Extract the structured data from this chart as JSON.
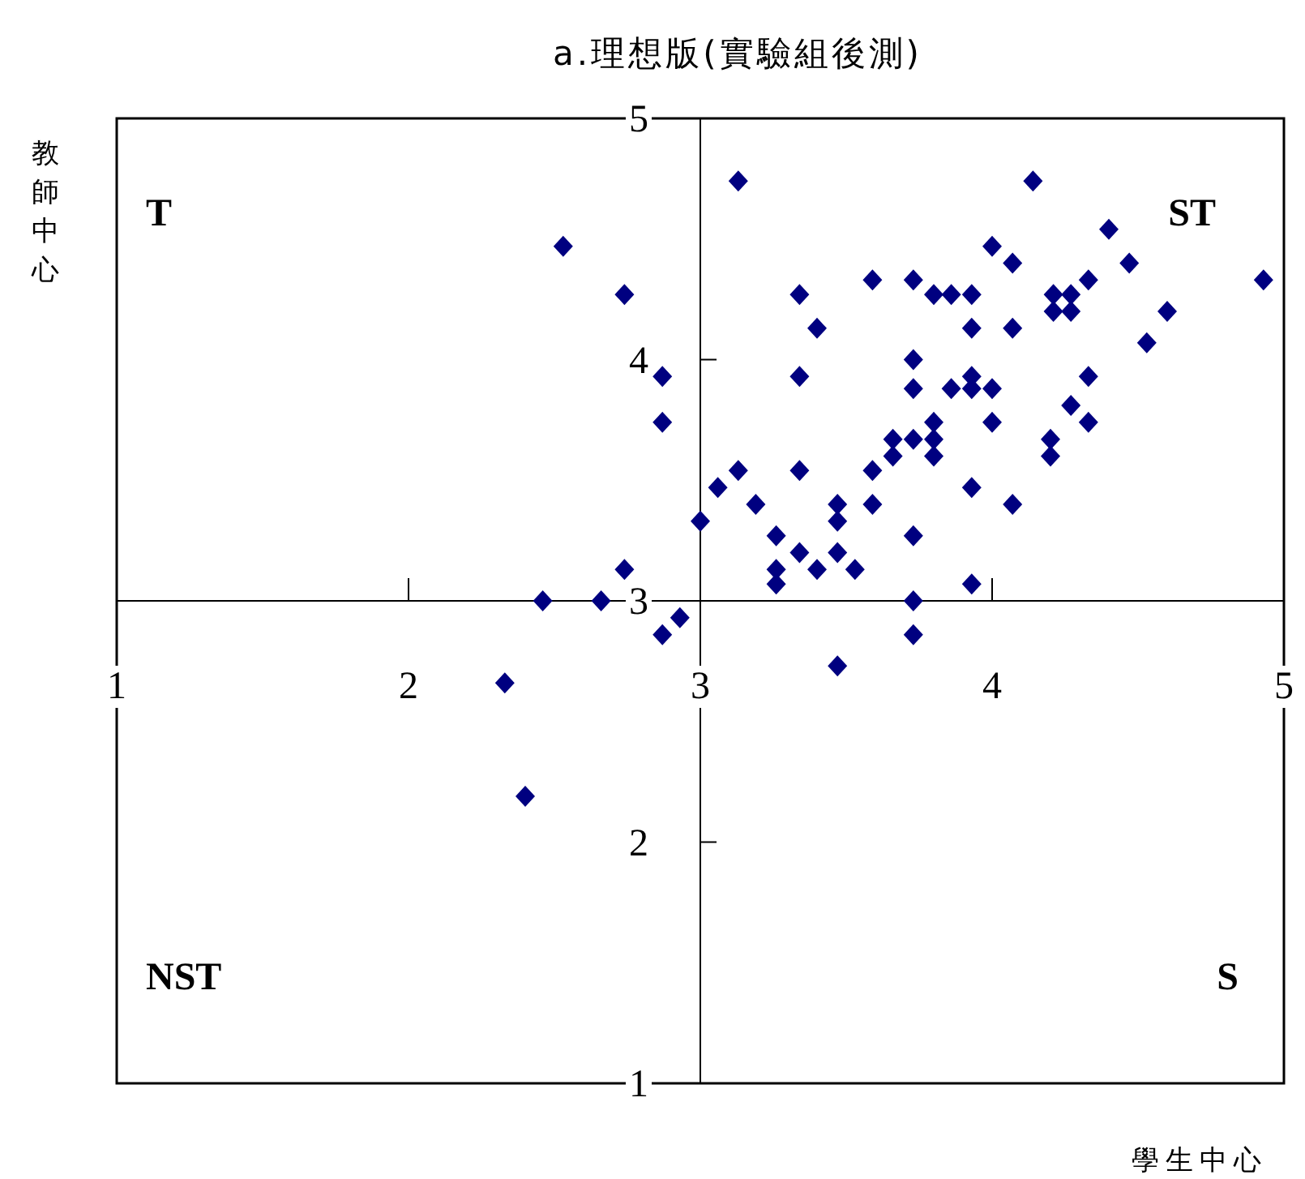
{
  "chart_data": {
    "type": "scatter",
    "title": "a.理想版(實驗組後測)",
    "xlabel": "學生中心",
    "ylabel": "教師中心",
    "annotations": [
      "T",
      "ST",
      "NST",
      "S"
    ],
    "xlim": [
      1,
      5
    ],
    "ylim": [
      1,
      5
    ],
    "xticks": [
      1,
      2,
      3,
      4,
      5
    ],
    "yticks": [
      1,
      2,
      3,
      4,
      5
    ],
    "grid": false,
    "marker": "diamond",
    "series": [
      {
        "color": "#000080",
        "x": [
          3.13,
          4.14,
          2.53,
          2.74,
          3.34,
          3.59,
          3.73,
          3.8,
          3.86,
          3.93,
          4.0,
          4.07,
          4.21,
          4.27,
          4.21,
          4.27,
          4.33,
          4.4,
          4.47,
          4.93,
          4.6,
          4.53,
          3.4,
          3.93,
          4.07,
          2.87,
          3.34,
          3.73,
          3.73,
          3.93,
          3.86,
          3.93,
          4.0,
          4.33,
          4.27,
          2.87,
          3.8,
          4.0,
          4.33,
          3.66,
          3.73,
          3.8,
          3.66,
          3.8,
          4.2,
          4.2,
          3.59,
          3.13,
          3.34,
          3.06,
          3.93,
          3.19,
          3.47,
          3.59,
          4.07,
          3.0,
          3.47,
          3.26,
          3.73,
          3.34,
          3.47,
          3.26,
          3.4,
          3.53,
          2.74,
          3.26,
          3.93,
          2.46,
          2.66,
          3.73,
          2.93,
          2.87,
          3.73,
          3.47,
          2.33,
          2.4
        ],
        "values": [
          4.74,
          4.74,
          4.47,
          4.27,
          4.27,
          4.33,
          4.33,
          4.27,
          4.27,
          4.27,
          4.47,
          4.4,
          4.27,
          4.27,
          4.2,
          4.2,
          4.33,
          4.54,
          4.4,
          4.33,
          4.2,
          4.07,
          4.13,
          4.13,
          4.13,
          3.93,
          3.93,
          4.0,
          3.88,
          3.93,
          3.88,
          3.88,
          3.88,
          3.93,
          3.81,
          3.74,
          3.74,
          3.74,
          3.74,
          3.67,
          3.67,
          3.67,
          3.6,
          3.6,
          3.67,
          3.6,
          3.54,
          3.54,
          3.54,
          3.47,
          3.47,
          3.4,
          3.4,
          3.4,
          3.4,
          3.33,
          3.33,
          3.27,
          3.27,
          3.2,
          3.2,
          3.13,
          3.13,
          3.13,
          3.13,
          3.07,
          3.07,
          3.0,
          3.0,
          3.0,
          2.93,
          2.86,
          2.86,
          2.73,
          2.66,
          2.19
        ]
      }
    ]
  }
}
